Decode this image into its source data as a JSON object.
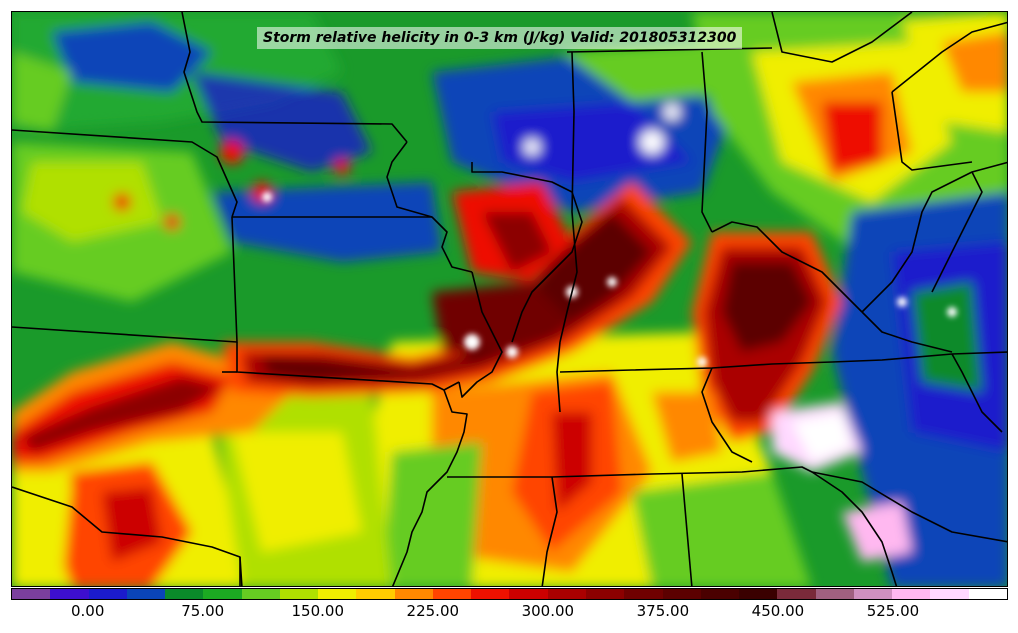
{
  "title": "Storm relative helicity in 0-3 km (J/kg) Valid: 201805312300",
  "colorbar": {
    "colors": [
      "#7b3f9e",
      "#3d0fcf",
      "#1b1bcc",
      "#0a44b8",
      "#0a8a2a",
      "#1caa22",
      "#66cc22",
      "#b0e000",
      "#f0ee00",
      "#ffcc00",
      "#ff8800",
      "#ff4400",
      "#ee1100",
      "#cc0000",
      "#aa0000",
      "#8c0000",
      "#700000",
      "#5c0000",
      "#4a0000",
      "#3a0000",
      "#7a2a3a",
      "#a06080",
      "#d090c0",
      "#ffb8f0",
      "#ffd8ff",
      "#ffffff"
    ],
    "tick_labels": [
      "0.00",
      "75.00",
      "150.00",
      "225.00",
      "300.00",
      "375.00",
      "450.00",
      "525.00"
    ],
    "tick_values": [
      0,
      75,
      150,
      225,
      300,
      375,
      450,
      525
    ],
    "min": -50,
    "max": 600
  }
}
